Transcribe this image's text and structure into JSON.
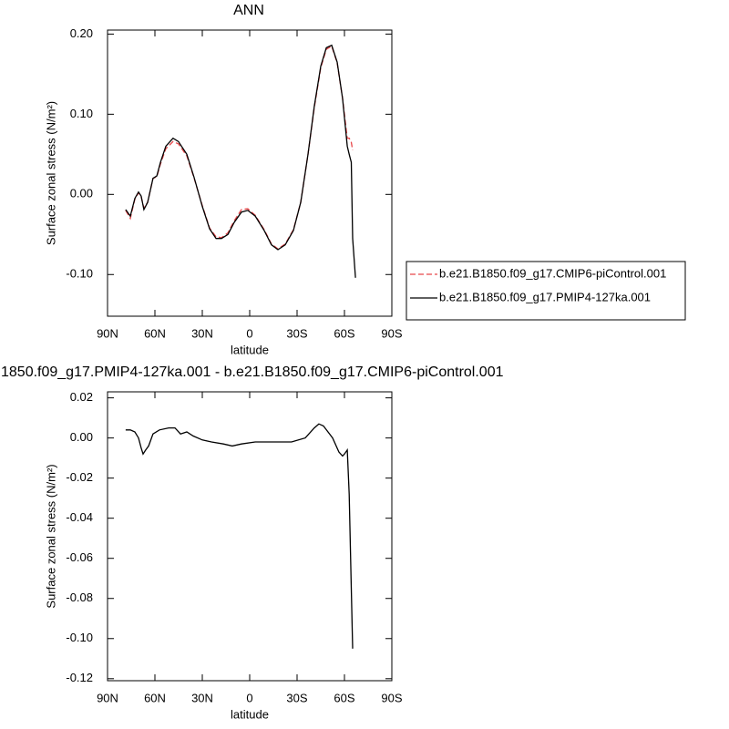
{
  "chart_data": [
    {
      "type": "line",
      "title": "ANN",
      "x_label": "latitude",
      "y_label": "Surface zonal stress (N/m²)",
      "x": [
        78.5,
        75.6,
        72.7,
        70.4,
        68.7,
        67,
        64.6,
        61.2,
        58.8,
        56.5,
        53.1,
        48.5,
        45.1,
        39.8,
        35.3,
        30,
        25.4,
        21.3,
        17.8,
        13.8,
        9.8,
        5.2,
        1.2,
        -3.5,
        -9.2,
        -13.8,
        -17.9,
        -22.5,
        -27.7,
        -32.3,
        -36.9,
        -40.9,
        -45,
        -48.5,
        -51.9,
        -55.4,
        -58.8,
        -61.8,
        -63,
        -64.3,
        -65.2,
        -67
      ],
      "series": [
        {
          "name": "b.e21.B1850.f09_g17.CMIP6-piControl.001",
          "color": "#e8474a",
          "dashed": true,
          "values": [
            -0.02,
            -0.03,
            -0.006,
            0.002,
            -0.003,
            -0.017,
            -0.01,
            0.02,
            0.022,
            0.038,
            0.057,
            0.066,
            0.063,
            0.048,
            0.021,
            -0.014,
            -0.042,
            -0.053,
            -0.054,
            -0.048,
            -0.033,
            -0.019,
            -0.018,
            -0.026,
            -0.044,
            -0.062,
            -0.068,
            -0.062,
            -0.044,
            -0.01,
            0.05,
            0.108,
            0.158,
            0.181,
            0.185,
            0.164,
            0.12,
            0.07,
            0.07,
            0.065,
            0.055,
            null
          ]
        },
        {
          "name": "b.e21.B1850.f09_g17.PMIP4-127ka.001",
          "color": "#000000",
          "dashed": false,
          "values": [
            -0.019,
            -0.027,
            -0.005,
            0.003,
            -0.002,
            -0.019,
            -0.01,
            0.02,
            0.023,
            0.04,
            0.06,
            0.07,
            0.066,
            0.05,
            0.022,
            -0.015,
            -0.043,
            -0.055,
            -0.055,
            -0.05,
            -0.035,
            -0.022,
            -0.02,
            -0.027,
            -0.045,
            -0.063,
            -0.069,
            -0.063,
            -0.045,
            -0.01,
            0.05,
            0.11,
            0.16,
            0.183,
            0.186,
            0.165,
            0.12,
            0.06,
            0.05,
            0.04,
            -0.055,
            -0.104
          ]
        }
      ],
      "xlim": [
        90,
        -90
      ],
      "xticks": [
        {
          "value": 90,
          "label": "90N"
        },
        {
          "value": 60,
          "label": "60N"
        },
        {
          "value": 30,
          "label": "30N"
        },
        0,
        {
          "value": -30,
          "label": "30S"
        },
        {
          "value": -60,
          "label": "60S"
        },
        {
          "value": -90,
          "label": "90S"
        }
      ],
      "ylim": [
        -0.152,
        0.205
      ],
      "yticks": [
        {
          "value": 0.2,
          "label": "0.20"
        },
        {
          "value": 0.1,
          "label": "0.10"
        },
        {
          "value": 0,
          "label": "0.00"
        },
        {
          "value": -0.1,
          "label": "-0.10"
        }
      ],
      "legend": "right"
    },
    {
      "type": "line",
      "title": "1850.f09_g17.PMIP4-127ka.001 - b.e21.B1850.f09_g17.CMIP6-piControl.001",
      "x_label": "latitude",
      "y_label": "Surface zonal stress (N/m²)",
      "x": [
        78.5,
        75.6,
        72.7,
        70.4,
        68.7,
        67.5,
        65.8,
        64,
        61.2,
        57.1,
        51.3,
        47.3,
        43.8,
        39.8,
        35.8,
        30,
        24.2,
        16.7,
        11,
        5.2,
        -3.5,
        -15,
        -26.5,
        -35.2,
        -40.9,
        -43.8,
        -46.7,
        -52.5,
        -56.5,
        -58.8,
        -60,
        -61.8,
        -63,
        -64.3,
        -65.2
      ],
      "series": [
        {
          "color": "#000000",
          "dashed": false,
          "values": [
            0.004,
            0.004,
            0.003,
            0.0,
            -0.005,
            -0.008,
            -0.006,
            -0.004,
            0.002,
            0.004,
            0.005,
            0.005,
            0.002,
            0.003,
            0.001,
            -0.001,
            -0.002,
            -0.003,
            -0.004,
            -0.003,
            -0.002,
            -0.002,
            -0.002,
            0.0,
            0.005,
            0.007,
            0.006,
            0.0,
            -0.007,
            -0.009,
            -0.008,
            -0.006,
            -0.028,
            -0.075,
            -0.105
          ]
        }
      ],
      "xlim": [
        90,
        -90
      ],
      "xticks": [
        {
          "value": 90,
          "label": "90N"
        },
        {
          "value": 60,
          "label": "60N"
        },
        {
          "value": 30,
          "label": "30N"
        },
        0,
        {
          "value": -30,
          "label": "30S"
        },
        {
          "value": -60,
          "label": "60S"
        },
        {
          "value": -90,
          "label": "90S"
        }
      ],
      "ylim": [
        -0.121,
        0.023
      ],
      "yticks": [
        0.02,
        {
          "value": 0,
          "label": "0.00"
        },
        -0.02,
        -0.04,
        -0.06,
        -0.08,
        {
          "value": -0.1,
          "label": "-0.10"
        },
        -0.12
      ]
    }
  ]
}
